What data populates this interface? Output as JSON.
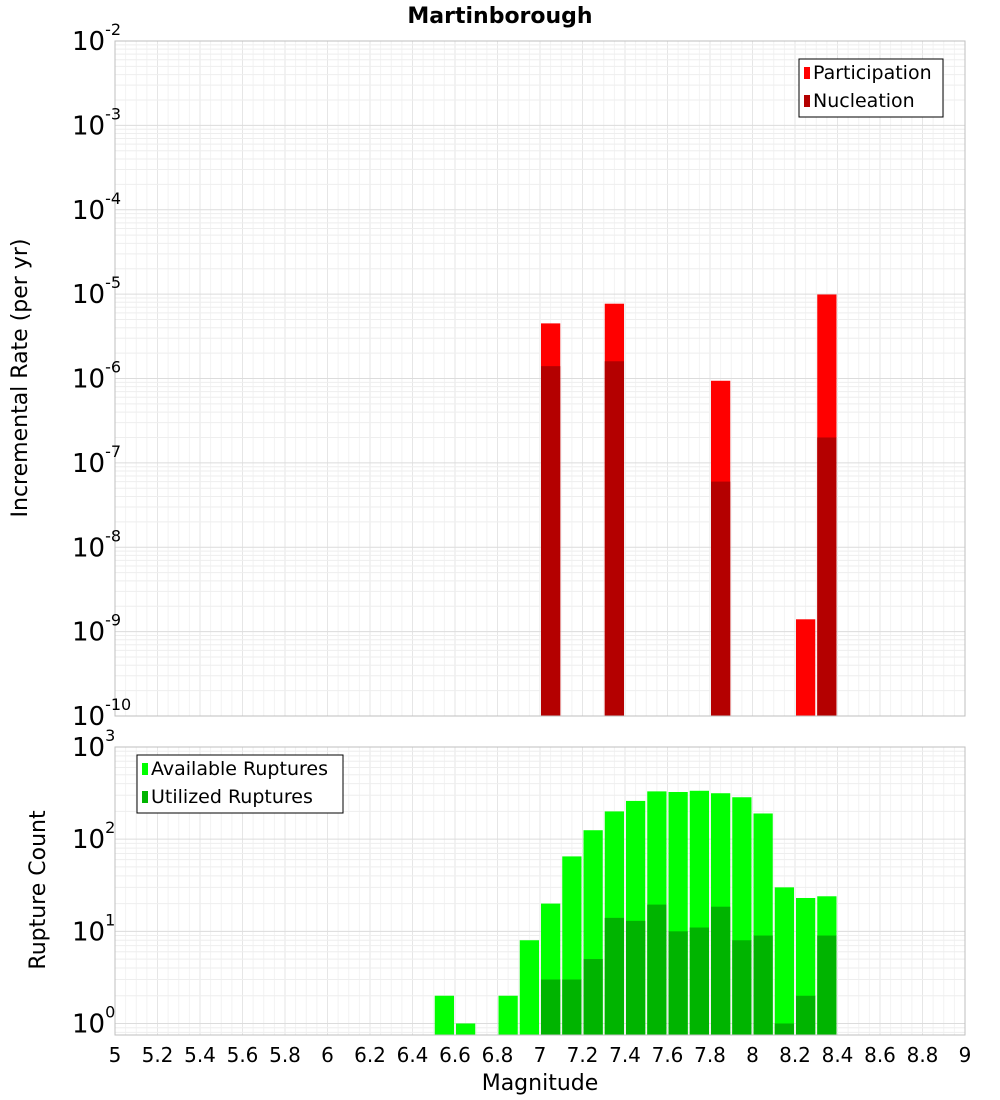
{
  "chart_data": [
    {
      "type": "bar",
      "title": "Martinborough",
      "xlabel": "",
      "ylabel": "Incremental Rate (per yr)",
      "yscale": "log",
      "ylim": [
        1e-10,
        0.01
      ],
      "xlim": [
        5,
        9
      ],
      "y_tick_exponents": [
        "-10",
        "-9",
        "-8",
        "-7",
        "-6",
        "-5",
        "-4",
        "-3",
        "-2"
      ],
      "y_tick_base": "10",
      "grid": true,
      "legend_position": "top-right",
      "bar_width": 0.1,
      "series": [
        {
          "name": "Participation",
          "color": "#ff0000",
          "points": [
            {
              "x": 7.05,
              "y": 4.5e-06
            },
            {
              "x": 7.35,
              "y": 7.7e-06
            },
            {
              "x": 7.85,
              "y": 9.4e-07
            },
            {
              "x": 8.25,
              "y": 1.4e-09
            },
            {
              "x": 8.35,
              "y": 9.9e-06
            }
          ]
        },
        {
          "name": "Nucleation",
          "color": "#b40000",
          "points": [
            {
              "x": 7.05,
              "y": 1.4e-06
            },
            {
              "x": 7.35,
              "y": 1.6e-06
            },
            {
              "x": 7.85,
              "y": 6e-08
            },
            {
              "x": 8.35,
              "y": 2e-07
            }
          ]
        }
      ]
    },
    {
      "type": "bar",
      "xlabel": "Magnitude",
      "ylabel": "Rupture Count",
      "yscale": "log",
      "ylim": [
        0.75,
        1000
      ],
      "xlim": [
        5,
        9
      ],
      "x_ticks": [
        "5",
        "5.2",
        "5.4",
        "5.6",
        "5.8",
        "6",
        "6.2",
        "6.4",
        "6.6",
        "6.8",
        "7",
        "7.2",
        "7.4",
        "7.6",
        "7.8",
        "8",
        "8.2",
        "8.4",
        "8.6",
        "8.8",
        "9"
      ],
      "y_tick_exponents": [
        "0",
        "1",
        "2",
        "3"
      ],
      "y_tick_base": "10",
      "grid": true,
      "legend_position": "top-left",
      "bar_width": 0.1,
      "series": [
        {
          "name": "Available Ruptures",
          "color": "#00ff00",
          "points": [
            {
              "x": 6.55,
              "y": 2
            },
            {
              "x": 6.65,
              "y": 1
            },
            {
              "x": 6.85,
              "y": 2
            },
            {
              "x": 6.95,
              "y": 8
            },
            {
              "x": 7.05,
              "y": 20
            },
            {
              "x": 7.15,
              "y": 65
            },
            {
              "x": 7.25,
              "y": 125
            },
            {
              "x": 7.35,
              "y": 200
            },
            {
              "x": 7.45,
              "y": 260
            },
            {
              "x": 7.55,
              "y": 330
            },
            {
              "x": 7.65,
              "y": 325
            },
            {
              "x": 7.75,
              "y": 335
            },
            {
              "x": 7.85,
              "y": 315
            },
            {
              "x": 7.95,
              "y": 285
            },
            {
              "x": 8.05,
              "y": 190
            },
            {
              "x": 8.15,
              "y": 30
            },
            {
              "x": 8.25,
              "y": 23
            },
            {
              "x": 8.35,
              "y": 24
            }
          ]
        },
        {
          "name": "Utilized Ruptures",
          "color": "#00b400",
          "points": [
            {
              "x": 7.05,
              "y": 3
            },
            {
              "x": 7.15,
              "y": 3
            },
            {
              "x": 7.25,
              "y": 5
            },
            {
              "x": 7.35,
              "y": 14
            },
            {
              "x": 7.45,
              "y": 13
            },
            {
              "x": 7.55,
              "y": 19.5
            },
            {
              "x": 7.65,
              "y": 10
            },
            {
              "x": 7.75,
              "y": 11
            },
            {
              "x": 7.85,
              "y": 18.5
            },
            {
              "x": 7.95,
              "y": 8
            },
            {
              "x": 8.05,
              "y": 9
            },
            {
              "x": 8.15,
              "y": 1
            },
            {
              "x": 8.25,
              "y": 2
            },
            {
              "x": 8.35,
              "y": 9
            }
          ]
        }
      ]
    }
  ]
}
